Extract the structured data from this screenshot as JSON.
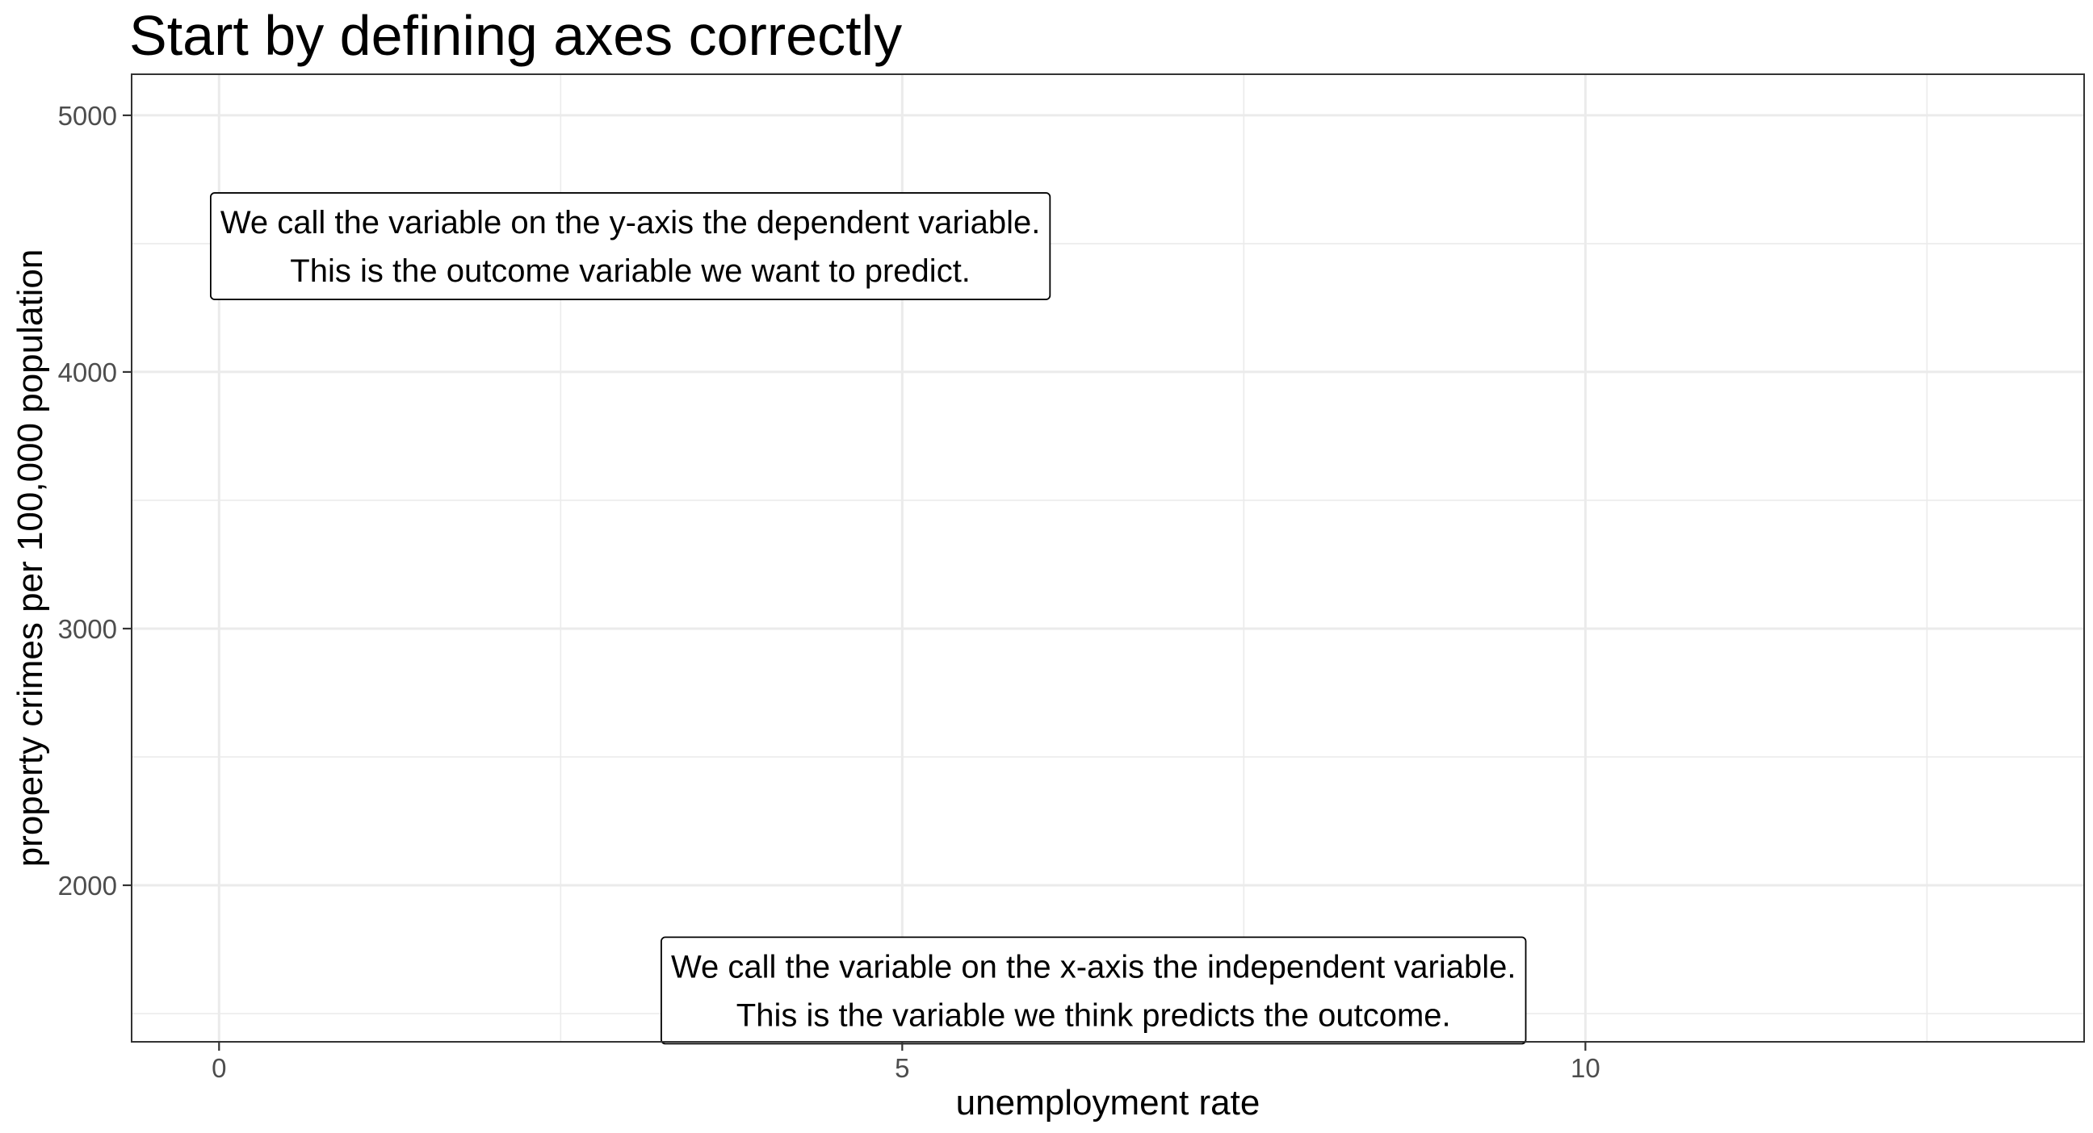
{
  "chart_data": {
    "type": "scatter",
    "title": "Start by defining axes correctly",
    "xlabel": "unemployment rate",
    "ylabel": "property crimes per 100,000 population",
    "xlim": [
      -0.64,
      13.65
    ],
    "ylim": [
      1390,
      5160
    ],
    "x_ticks": [
      0,
      5,
      10
    ],
    "x_minor_ticks": [
      2.5,
      7.5,
      12.5
    ],
    "y_ticks": [
      2000,
      3000,
      4000,
      5000
    ],
    "y_minor_ticks": [
      1500,
      2500,
      3500,
      4500
    ],
    "x_tick_labels": [
      "0",
      "5",
      "10"
    ],
    "y_tick_labels": [
      "2000",
      "3000",
      "4000",
      "5000"
    ],
    "grid": true,
    "series": [],
    "annotations": [
      {
        "x": 3.01,
        "y": 4490,
        "lines": [
          "We call the variable on the y-axis the dependent variable.",
          "This is the outcome variable we want to predict."
        ]
      },
      {
        "x": 6.4,
        "y": 1590,
        "lines": [
          "We call the variable on the x-axis the independent variable.",
          "This is the variable we think predicts the outcome."
        ]
      }
    ]
  }
}
